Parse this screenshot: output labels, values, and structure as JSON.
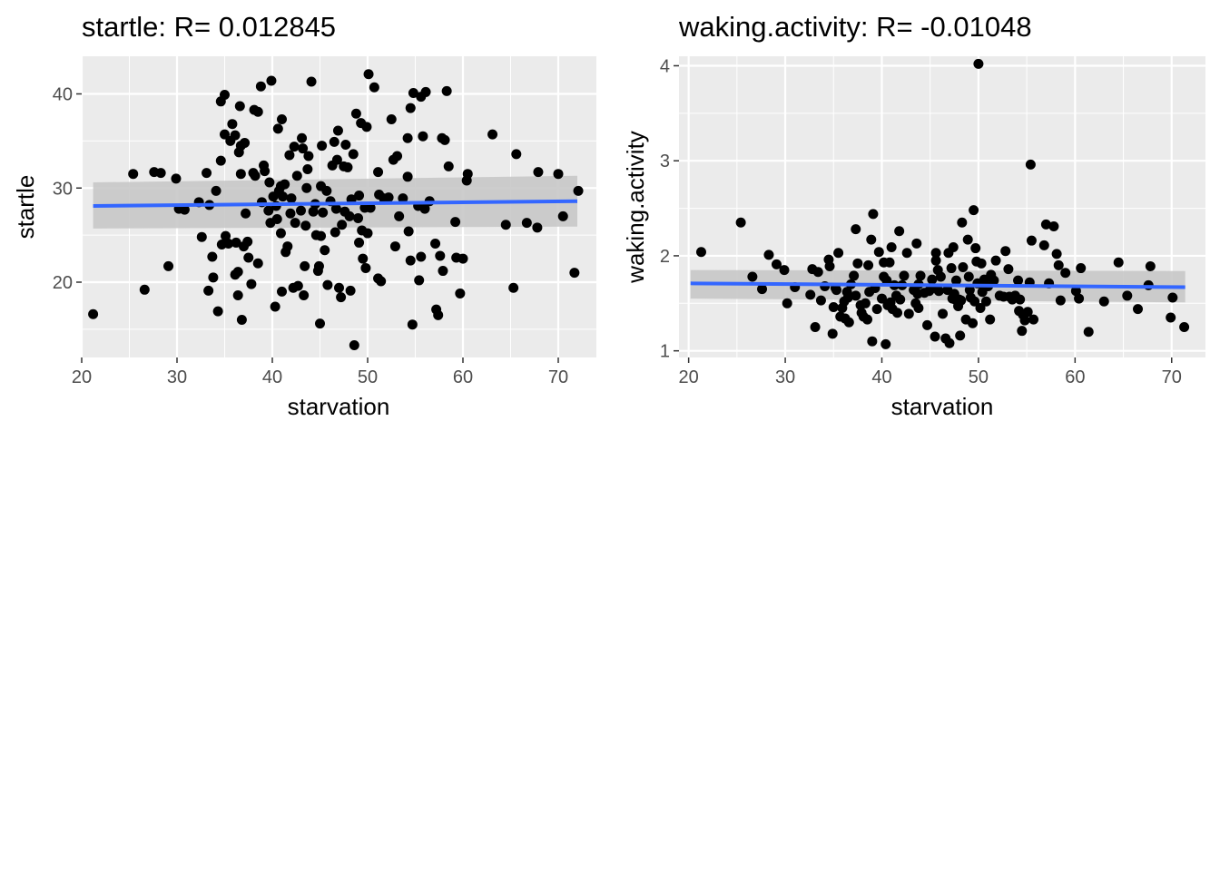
{
  "chart_data": [
    {
      "type": "scatter",
      "title": "startle: R= 0.012845",
      "xlabel": "starvation",
      "ylabel": "startle",
      "xlim": [
        20,
        74
      ],
      "ylim": [
        12,
        44
      ],
      "xticks": [
        20,
        30,
        40,
        50,
        60,
        70
      ],
      "yticks": [
        20,
        30,
        40
      ],
      "grid": true,
      "colors": {
        "points": "#000000",
        "fit": "#3366ff",
        "ribbon": "#c8c8c8",
        "panel": "#ebebeb",
        "grid": "#ffffff"
      },
      "fit": {
        "x": [
          21.2,
          72.0
        ],
        "y": [
          28.1,
          28.6
        ]
      },
      "ribbon": {
        "x": [
          21.2,
          72.0
        ],
        "lower": [
          25.7,
          25.9
        ],
        "upper": [
          30.6,
          31.3
        ]
      },
      "points": [
        [
          21.2,
          16.6
        ],
        [
          25.4,
          31.5
        ],
        [
          26.6,
          19.2
        ],
        [
          27.6,
          31.7
        ],
        [
          28.3,
          31.6
        ],
        [
          29.1,
          21.7
        ],
        [
          29.9,
          31
        ],
        [
          30.2,
          27.8
        ],
        [
          30.8,
          27.7
        ],
        [
          32.3,
          28.5
        ],
        [
          32.6,
          24.8
        ],
        [
          33.1,
          31.6
        ],
        [
          33.3,
          19.1
        ],
        [
          33.4,
          28.2
        ],
        [
          33.7,
          22.7
        ],
        [
          33.8,
          20.5
        ],
        [
          34.1,
          29.7
        ],
        [
          34.3,
          16.9
        ],
        [
          34.6,
          32.9
        ],
        [
          34.6,
          39.2
        ],
        [
          34.7,
          24
        ],
        [
          35,
          39.9
        ],
        [
          35,
          35.7
        ],
        [
          35.1,
          24.9
        ],
        [
          35.4,
          24.1
        ],
        [
          35.6,
          35
        ],
        [
          35.8,
          36.8
        ],
        [
          36.1,
          35.6
        ],
        [
          36.1,
          20.8
        ],
        [
          36.2,
          24.2
        ],
        [
          36.4,
          21.1
        ],
        [
          36.4,
          18.6
        ],
        [
          36.5,
          33.8
        ],
        [
          36.6,
          38.7
        ],
        [
          36.7,
          31.5
        ],
        [
          36.7,
          34.5
        ],
        [
          36.8,
          16
        ],
        [
          37,
          23.8
        ],
        [
          37.1,
          34.8
        ],
        [
          37.2,
          27.3
        ],
        [
          37.4,
          24.3
        ],
        [
          37.5,
          22.6
        ],
        [
          37.8,
          19.8
        ],
        [
          38,
          31.6
        ],
        [
          38.1,
          38.3
        ],
        [
          38.2,
          31.3
        ],
        [
          38.5,
          38.1
        ],
        [
          38.5,
          22
        ],
        [
          38.8,
          40.8
        ],
        [
          38.9,
          28.5
        ],
        [
          39.1,
          32.4
        ],
        [
          39.2,
          31.8
        ],
        [
          39.6,
          27.6
        ],
        [
          39.7,
          30.6
        ],
        [
          39.8,
          26.3
        ],
        [
          39.9,
          41.4
        ],
        [
          40.1,
          29.1
        ],
        [
          40.3,
          17.4
        ],
        [
          40.4,
          28.1
        ],
        [
          40.5,
          26.7
        ],
        [
          40.6,
          36.3
        ],
        [
          40.7,
          29.7
        ],
        [
          40.9,
          30.2
        ],
        [
          40.9,
          25.2
        ],
        [
          41,
          37.3
        ],
        [
          41,
          19
        ],
        [
          41.1,
          29.1
        ],
        [
          41.3,
          30.4
        ],
        [
          41.4,
          23.2
        ],
        [
          41.6,
          23.8
        ],
        [
          41.8,
          33.5
        ],
        [
          41.9,
          27.3
        ],
        [
          42,
          28.9
        ],
        [
          42.2,
          19.4
        ],
        [
          42.3,
          34.4
        ],
        [
          42.4,
          26.3
        ],
        [
          42.6,
          31.3
        ],
        [
          42.7,
          19.6
        ],
        [
          43,
          27.6
        ],
        [
          43.1,
          35.3
        ],
        [
          43.2,
          34.2
        ],
        [
          43.3,
          18.6
        ],
        [
          43.4,
          21.7
        ],
        [
          43.5,
          26
        ],
        [
          43.6,
          30
        ],
        [
          43.7,
          32
        ],
        [
          43.8,
          33.4
        ],
        [
          44.1,
          41.3
        ],
        [
          44.3,
          27.5
        ],
        [
          44.5,
          28.3
        ],
        [
          44.6,
          25
        ],
        [
          44.8,
          21.2
        ],
        [
          44.9,
          21.7
        ],
        [
          45,
          15.6
        ],
        [
          45.1,
          24.9
        ],
        [
          45.1,
          30.2
        ],
        [
          45.2,
          34.5
        ],
        [
          45.3,
          27.4
        ],
        [
          45.5,
          23.4
        ],
        [
          45.7,
          29.7
        ],
        [
          45.8,
          19.7
        ],
        [
          46.1,
          28.6
        ],
        [
          46.3,
          32.4
        ],
        [
          46.5,
          34.9
        ],
        [
          46.6,
          25.3
        ],
        [
          46.7,
          27.8
        ],
        [
          46.8,
          33
        ],
        [
          46.9,
          36.1
        ],
        [
          47,
          19.4
        ],
        [
          47.2,
          18.4
        ],
        [
          47.3,
          26.1
        ],
        [
          47.5,
          32.3
        ],
        [
          47.6,
          27.5
        ],
        [
          47.7,
          34.6
        ],
        [
          47.9,
          32.2
        ],
        [
          48.1,
          27
        ],
        [
          48.2,
          19.1
        ],
        [
          48.3,
          28.8
        ],
        [
          48.5,
          33.6
        ],
        [
          48.6,
          13.3
        ],
        [
          48.8,
          37.9
        ],
        [
          49,
          26.8
        ],
        [
          49.1,
          29.2
        ],
        [
          49.1,
          24.2
        ],
        [
          49.3,
          36.9
        ],
        [
          49.4,
          25.5
        ],
        [
          49.5,
          22.5
        ],
        [
          49.7,
          27.9
        ],
        [
          49.8,
          21.5
        ],
        [
          49.9,
          36.5
        ],
        [
          50,
          25.2
        ],
        [
          50.1,
          42.1
        ],
        [
          50.3,
          27.9
        ],
        [
          50.7,
          40.7
        ],
        [
          51.1,
          31.7
        ],
        [
          51.1,
          20.4
        ],
        [
          51.2,
          29.3
        ],
        [
          51.4,
          20.1
        ],
        [
          51.7,
          28.9
        ],
        [
          52.2,
          29
        ],
        [
          52.5,
          37.3
        ],
        [
          52.7,
          33
        ],
        [
          52.9,
          23.8
        ],
        [
          53.1,
          33.4
        ],
        [
          53.3,
          27
        ],
        [
          53.7,
          28.9
        ],
        [
          54.2,
          35.3
        ],
        [
          54.2,
          31.2
        ],
        [
          54.3,
          25.4
        ],
        [
          54.5,
          38.5
        ],
        [
          54.5,
          22.3
        ],
        [
          54.7,
          15.5
        ],
        [
          54.8,
          40.1
        ],
        [
          55.3,
          28.1
        ],
        [
          55.4,
          20.2
        ],
        [
          55.6,
          22.7
        ],
        [
          55.6,
          39.7
        ],
        [
          55.8,
          35.5
        ],
        [
          56,
          27.8
        ],
        [
          56.1,
          40.2
        ],
        [
          56.5,
          28.6
        ],
        [
          57.1,
          24.1
        ],
        [
          57.2,
          17.1
        ],
        [
          57.4,
          16.5
        ],
        [
          57.6,
          22.8
        ],
        [
          57.8,
          35.3
        ],
        [
          57.9,
          21.2
        ],
        [
          58.1,
          35.1
        ],
        [
          58.3,
          40.3
        ],
        [
          58.5,
          32.3
        ],
        [
          59.2,
          26.4
        ],
        [
          59.3,
          22.6
        ],
        [
          59.7,
          18.8
        ],
        [
          60,
          22.5
        ],
        [
          60.4,
          30.8
        ],
        [
          60.5,
          31.5
        ],
        [
          63.1,
          35.7
        ],
        [
          64.5,
          26.1
        ],
        [
          65.3,
          19.4
        ],
        [
          65.6,
          33.6
        ],
        [
          66.7,
          26.3
        ],
        [
          67.8,
          25.8
        ],
        [
          67.9,
          31.7
        ],
        [
          70,
          31.5
        ],
        [
          70.5,
          27
        ],
        [
          71.7,
          21
        ],
        [
          72.1,
          29.7
        ]
      ]
    },
    {
      "type": "scatter",
      "title": "waking.activity: R= -0.01048",
      "xlabel": "starvation",
      "ylabel": "waking.activity",
      "xlim": [
        19,
        73.5
      ],
      "ylim": [
        0.93,
        4.1
      ],
      "xticks": [
        20,
        30,
        40,
        50,
        60,
        70
      ],
      "yticks": [
        1,
        2,
        3,
        4
      ],
      "grid": true,
      "colors": {
        "points": "#000000",
        "fit": "#3366ff",
        "ribbon": "#c8c8c8",
        "panel": "#ebebeb",
        "grid": "#ffffff"
      },
      "fit": {
        "x": [
          20.2,
          71.4
        ],
        "y": [
          1.71,
          1.67
        ]
      },
      "ribbon": {
        "x": [
          20.2,
          71.4
        ],
        "lower": [
          1.55,
          1.51
        ],
        "upper": [
          1.85,
          1.84
        ]
      },
      "points": [
        [
          21.3,
          2.04
        ],
        [
          25.4,
          2.35
        ],
        [
          26.6,
          1.78
        ],
        [
          27.6,
          1.65
        ],
        [
          28.3,
          2.01
        ],
        [
          29.1,
          1.91
        ],
        [
          29.9,
          1.85
        ],
        [
          30.2,
          1.5
        ],
        [
          31,
          1.67
        ],
        [
          32.6,
          1.59
        ],
        [
          32.8,
          1.86
        ],
        [
          33.1,
          1.25
        ],
        [
          33.4,
          1.83
        ],
        [
          33.7,
          1.53
        ],
        [
          34.1,
          1.68
        ],
        [
          34.5,
          1.96
        ],
        [
          34.6,
          1.89
        ],
        [
          34.9,
          1.18
        ],
        [
          35,
          1.46
        ],
        [
          35.2,
          1.66
        ],
        [
          35.3,
          1.64
        ],
        [
          35.5,
          2.03
        ],
        [
          35.7,
          1.36
        ],
        [
          35.9,
          1.45
        ],
        [
          36.1,
          1.52
        ],
        [
          36.2,
          1.34
        ],
        [
          36.4,
          1.62
        ],
        [
          36.5,
          1.56
        ],
        [
          36.6,
          1.3
        ],
        [
          36.8,
          1.7
        ],
        [
          37.1,
          1.79
        ],
        [
          37.3,
          2.28
        ],
        [
          37.3,
          1.58
        ],
        [
          37.5,
          1.92
        ],
        [
          37.8,
          1.48
        ],
        [
          37.9,
          1.4
        ],
        [
          38.1,
          1.36
        ],
        [
          38.3,
          1.5
        ],
        [
          38.5,
          1.33
        ],
        [
          38.6,
          1.9
        ],
        [
          38.7,
          1.62
        ],
        [
          38.9,
          2.17
        ],
        [
          39,
          1.1
        ],
        [
          39.1,
          2.44
        ],
        [
          39.3,
          1.66
        ],
        [
          39.5,
          1.44
        ],
        [
          39.7,
          2.04
        ],
        [
          40,
          1.55
        ],
        [
          40.2,
          1.78
        ],
        [
          40.2,
          1.93
        ],
        [
          40.4,
          1.07
        ],
        [
          40.5,
          1.74
        ],
        [
          40.6,
          1.48
        ],
        [
          40.8,
          1.93
        ],
        [
          40.9,
          1.51
        ],
        [
          41,
          2.09
        ],
        [
          41.1,
          1.44
        ],
        [
          41.3,
          1.69
        ],
        [
          41.5,
          1.58
        ],
        [
          41.6,
          1.4
        ],
        [
          41.8,
          2.26
        ],
        [
          41.9,
          1.54
        ],
        [
          42.1,
          1.69
        ],
        [
          42.3,
          1.79
        ],
        [
          42.6,
          2.03
        ],
        [
          42.8,
          1.39
        ],
        [
          43.3,
          1.64
        ],
        [
          43.5,
          1.5
        ],
        [
          43.6,
          2.13
        ],
        [
          43.7,
          1.6
        ],
        [
          43.8,
          1.7
        ],
        [
          43.8,
          1.45
        ],
        [
          44,
          1.79
        ],
        [
          44.4,
          1.61
        ],
        [
          44.7,
          1.27
        ],
        [
          44.9,
          1.63
        ],
        [
          45.2,
          1.75
        ],
        [
          45.3,
          1.66
        ],
        [
          45.5,
          1.15
        ],
        [
          45.6,
          1.95
        ],
        [
          45.6,
          2.03
        ],
        [
          45.8,
          1.85
        ],
        [
          45.9,
          1.63
        ],
        [
          46.1,
          1.78
        ],
        [
          46.3,
          1.39
        ],
        [
          46.6,
          1.13
        ],
        [
          46.8,
          1.64
        ],
        [
          46.9,
          2.03
        ],
        [
          47,
          1.08
        ],
        [
          47.2,
          1.87
        ],
        [
          47.3,
          1.55
        ],
        [
          47.4,
          2.09
        ],
        [
          47.5,
          1.6
        ],
        [
          47.6,
          1.54
        ],
        [
          47.7,
          1.74
        ],
        [
          47.9,
          1.47
        ],
        [
          48,
          1.54
        ],
        [
          48.1,
          1.16
        ],
        [
          48.2,
          1.53
        ],
        [
          48.3,
          2.35
        ],
        [
          48.4,
          1.88
        ],
        [
          48.7,
          1.33
        ],
        [
          48.9,
          2.17
        ],
        [
          49,
          1.78
        ],
        [
          49.1,
          1.64
        ],
        [
          49.2,
          1.56
        ],
        [
          49.4,
          1.29
        ],
        [
          49.5,
          2.48
        ],
        [
          49.6,
          1.52
        ],
        [
          49.7,
          2.08
        ],
        [
          49.8,
          1.94
        ],
        [
          49.9,
          1.71
        ],
        [
          50,
          4.02
        ],
        [
          50.2,
          1.45
        ],
        [
          50.3,
          1.92
        ],
        [
          50.4,
          1.62
        ],
        [
          50.6,
          1.75
        ],
        [
          50.8,
          1.52
        ],
        [
          51,
          1.68
        ],
        [
          51.2,
          1.33
        ],
        [
          51.3,
          1.8
        ],
        [
          51.6,
          1.74
        ],
        [
          51.8,
          1.95
        ],
        [
          52.2,
          1.58
        ],
        [
          52.6,
          1.57
        ],
        [
          52.8,
          2.05
        ],
        [
          53.1,
          1.86
        ],
        [
          53.2,
          1.57
        ],
        [
          53.5,
          1.54
        ],
        [
          53.8,
          1.58
        ],
        [
          54.1,
          1.74
        ],
        [
          54.2,
          1.42
        ],
        [
          54.3,
          1.54
        ],
        [
          54.5,
          1.21
        ],
        [
          54.6,
          1.38
        ],
        [
          54.8,
          1.32
        ],
        [
          55.1,
          1.41
        ],
        [
          55.3,
          1.72
        ],
        [
          55.4,
          2.96
        ],
        [
          55.5,
          2.16
        ],
        [
          55.7,
          1.33
        ],
        [
          56.8,
          2.11
        ],
        [
          57,
          2.33
        ],
        [
          57.3,
          1.71
        ],
        [
          57.8,
          2.31
        ],
        [
          58.1,
          2.02
        ],
        [
          58.3,
          1.9
        ],
        [
          58.5,
          1.53
        ],
        [
          59,
          1.82
        ],
        [
          60.1,
          1.63
        ],
        [
          60.4,
          1.55
        ],
        [
          60.6,
          1.87
        ],
        [
          61.4,
          1.2
        ],
        [
          63,
          1.52
        ],
        [
          64.5,
          1.93
        ],
        [
          65.4,
          1.58
        ],
        [
          66.5,
          1.44
        ],
        [
          67.6,
          1.69
        ],
        [
          67.8,
          1.89
        ],
        [
          69.9,
          1.35
        ],
        [
          70.1,
          1.56
        ],
        [
          71.3,
          1.25
        ]
      ]
    }
  ]
}
